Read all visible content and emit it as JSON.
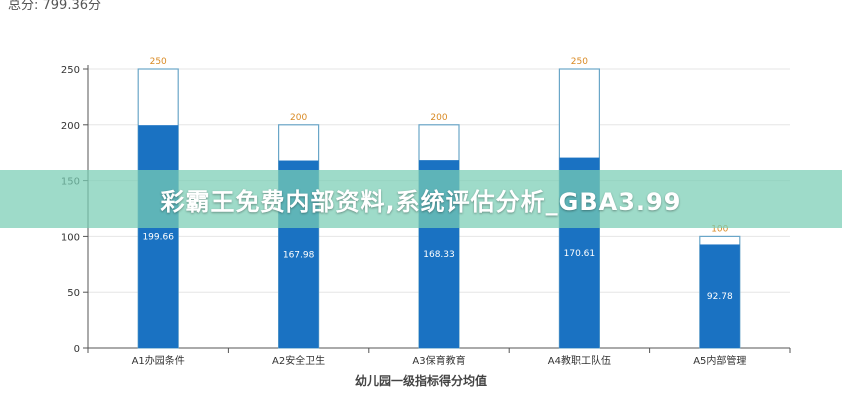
{
  "header": {
    "total_label": "总分: 799.36分"
  },
  "banner": {
    "text": "彩霸王免费内部资料,系统评估分析_GBA3.99"
  },
  "colors": {
    "filled": "#1a72c2",
    "outline": "#6aa6c8",
    "max_label": "#d98a24",
    "grid": "#e6e6e6",
    "axis": "#555555"
  },
  "chart_data": {
    "type": "bar",
    "xlabel": "幼儿园一级指标得分均值",
    "ylabel": "",
    "ylim": [
      0,
      250
    ],
    "yticks": [
      0,
      50,
      100,
      150,
      200,
      250
    ],
    "categories": [
      "A1办园条件",
      "A2安全卫生",
      "A3保育教育",
      "A4教职工队伍",
      "A5内部管理"
    ],
    "series": [
      {
        "values": [
          199.66,
          167.98,
          168.33,
          170.61,
          92.78
        ]
      },
      {
        "values": [
          250,
          200,
          200,
          250,
          100
        ]
      }
    ],
    "grid": true,
    "legend": "none"
  }
}
